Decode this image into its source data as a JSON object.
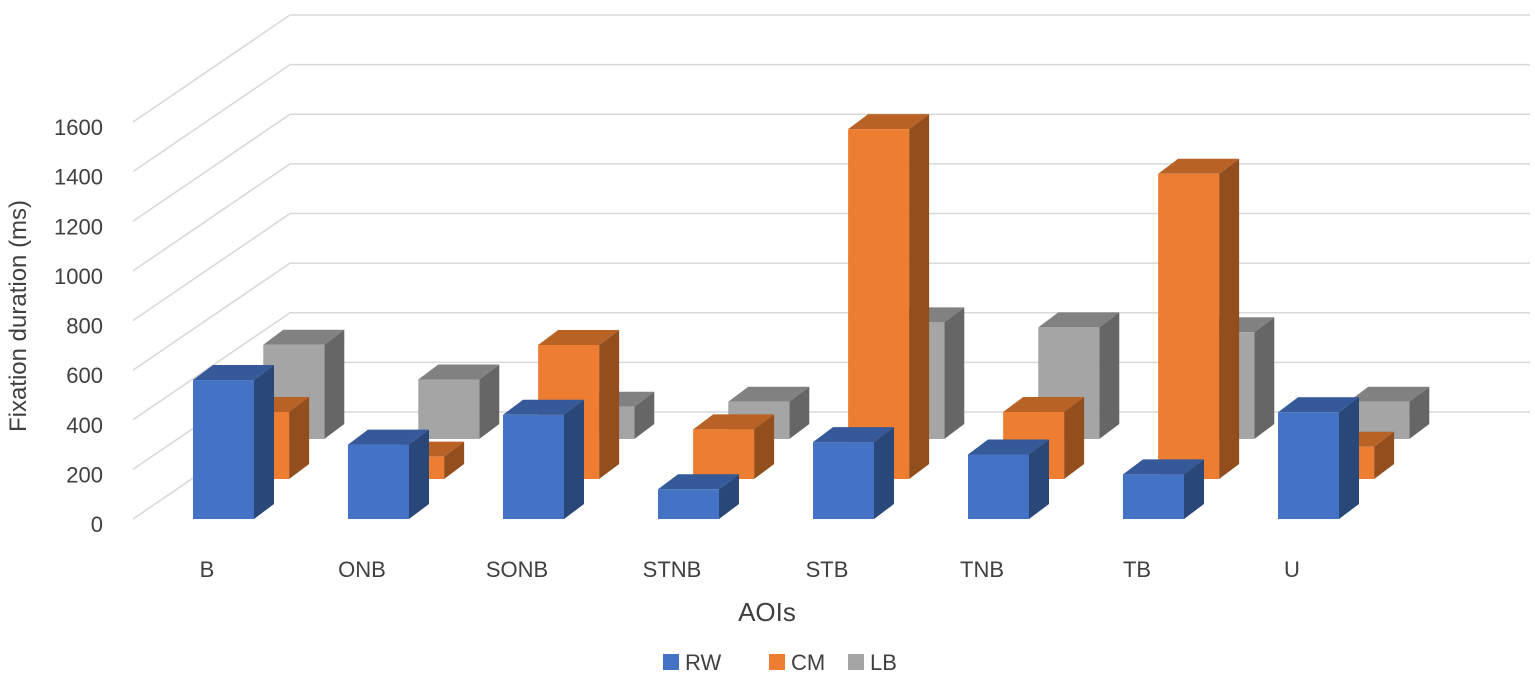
{
  "chart_data": {
    "type": "bar",
    "projection": "3d-clustered-depth",
    "title": "",
    "xlabel": "AOIs",
    "ylabel": "Fixation duration (ms)",
    "ylim": [
      0,
      1600
    ],
    "yticks": [
      "0",
      "200",
      "400",
      "600",
      "800",
      "1000",
      "1200",
      "1400",
      "1600"
    ],
    "categories": [
      "B",
      "ONB",
      "SONB",
      "STNB",
      "STB",
      "TNB",
      "TB",
      "U"
    ],
    "series": [
      {
        "name": "RW",
        "color": "#4472C4",
        "values": [
          560,
          300,
          420,
          120,
          310,
          260,
          180,
          430
        ]
      },
      {
        "name": "CM",
        "color": "#ED7D31",
        "values": [
          270,
          90,
          540,
          200,
          1410,
          270,
          1230,
          130
        ]
      },
      {
        "name": "LB",
        "color": "#A5A5A5",
        "values": [
          380,
          240,
          130,
          150,
          470,
          450,
          430,
          150
        ]
      }
    ],
    "grid": true,
    "legend": "bottom"
  }
}
